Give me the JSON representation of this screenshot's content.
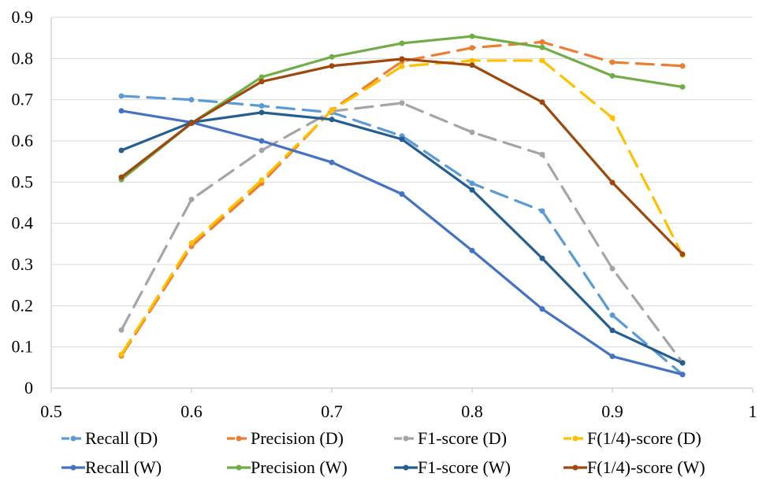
{
  "chart_data": {
    "type": "line",
    "title": "",
    "xlabel": "",
    "ylabel": "",
    "xlim": [
      0.5,
      1
    ],
    "ylim": [
      0,
      0.9
    ],
    "xticks": [
      "0.5",
      "0.6",
      "0.7",
      "0.8",
      "0.9",
      "1"
    ],
    "yticks": [
      "0",
      "0.1",
      "0.2",
      "0.3",
      "0.4",
      "0.5",
      "0.6",
      "0.7",
      "0.8",
      "0.9"
    ],
    "grid": "horizontal",
    "legend_position": "bottom",
    "x": [
      0.55,
      0.6,
      0.65,
      0.7,
      0.75,
      0.8,
      0.85,
      0.9,
      0.95
    ],
    "series": [
      {
        "name": "Recall (D)",
        "color": "#5B9BD5",
        "dashed": true,
        "values": [
          0.709,
          0.7,
          0.685,
          0.669,
          0.612,
          0.497,
          0.43,
          0.177,
          0.033
        ]
      },
      {
        "name": "Precision (D)",
        "color": "#ED7D31",
        "dashed": true,
        "values": [
          0.078,
          0.344,
          0.497,
          0.675,
          0.793,
          0.826,
          0.84,
          0.791,
          0.782
        ]
      },
      {
        "name": "F1-score (D)",
        "color": "#A5A5A5",
        "dashed": true,
        "values": [
          0.141,
          0.458,
          0.577,
          0.672,
          0.692,
          0.621,
          0.567,
          0.29,
          0.062
        ]
      },
      {
        "name": "F(1/4)-score (D)",
        "color": "#FFC000",
        "dashed": true,
        "values": [
          0.082,
          0.352,
          0.505,
          0.674,
          0.781,
          0.795,
          0.795,
          0.656,
          0.323
        ]
      },
      {
        "name": "Recall (W)",
        "color": "#4472C4",
        "dashed": false,
        "values": [
          0.673,
          0.645,
          0.6,
          0.548,
          0.471,
          0.334,
          0.192,
          0.077,
          0.033
        ]
      },
      {
        "name": "Precision (W)",
        "color": "#70AD47",
        "dashed": false,
        "values": [
          0.506,
          0.643,
          0.755,
          0.804,
          0.837,
          0.854,
          0.827,
          0.758,
          0.731
        ]
      },
      {
        "name": "F1-score (W)",
        "color": "#255E91",
        "dashed": false,
        "values": [
          0.577,
          0.645,
          0.669,
          0.652,
          0.604,
          0.481,
          0.315,
          0.14,
          0.061
        ]
      },
      {
        "name": "F(1/4)-score (W)",
        "color": "#9E480E",
        "dashed": false,
        "values": [
          0.512,
          0.643,
          0.744,
          0.782,
          0.799,
          0.784,
          0.694,
          0.499,
          0.325
        ]
      }
    ]
  }
}
